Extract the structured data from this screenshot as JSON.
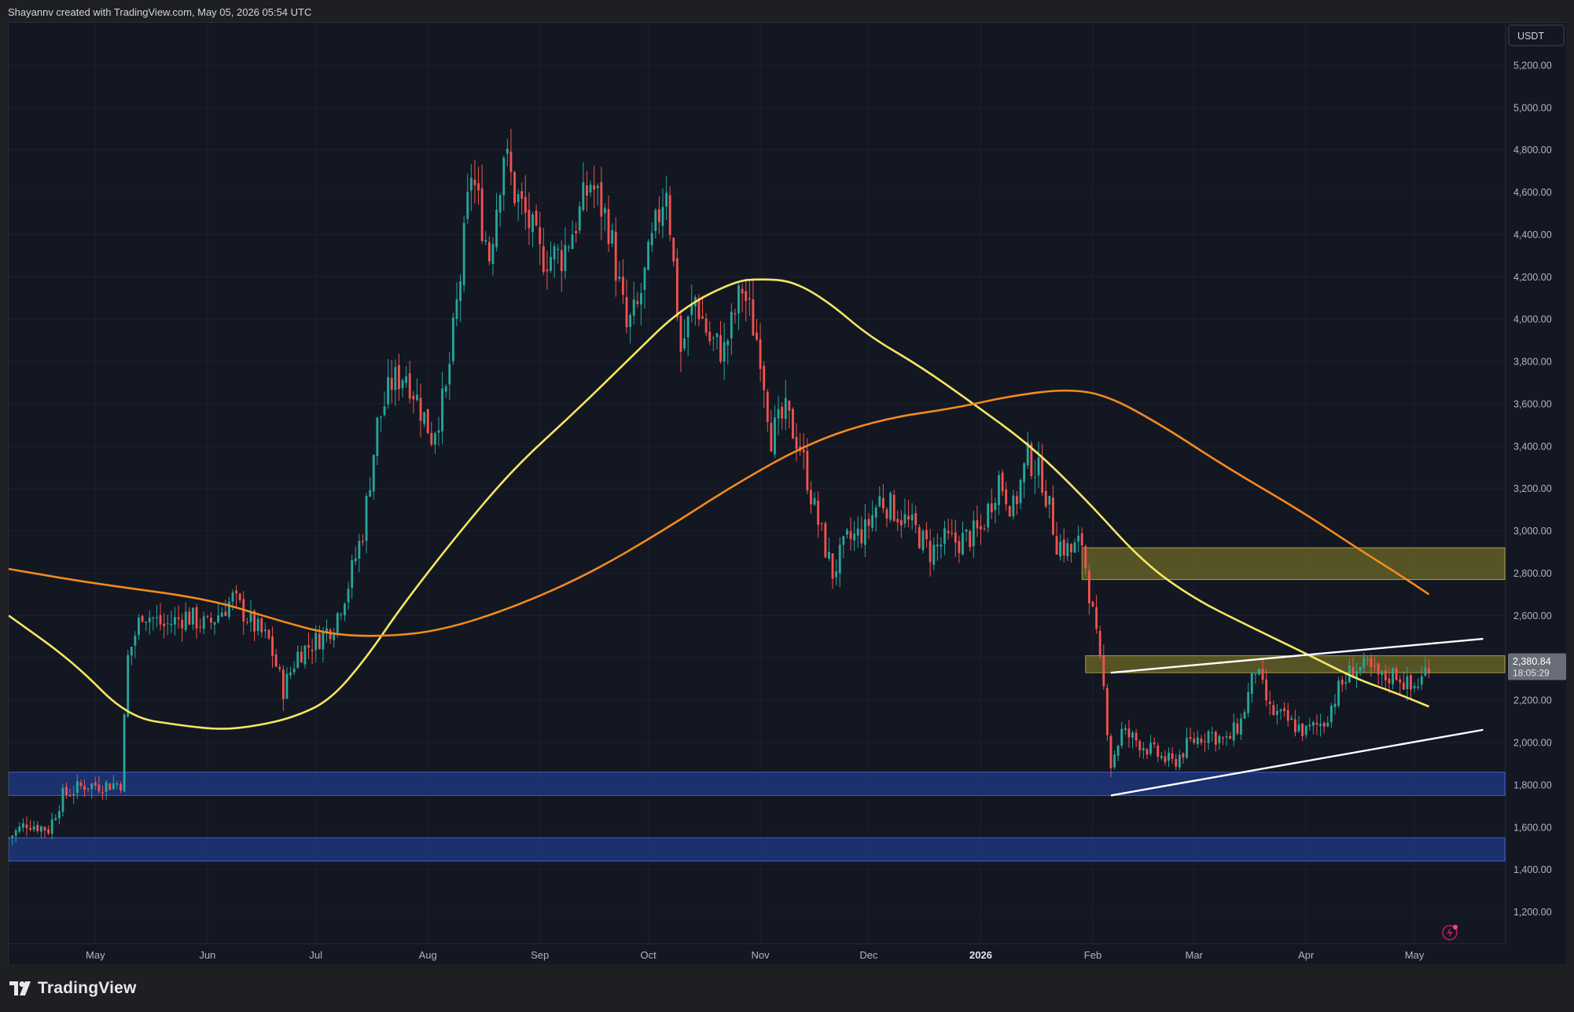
{
  "header": {
    "attribution": "Shayannv created with TradingView.com, May 05, 2026 05:54 UTC"
  },
  "footer": {
    "logo_text": "TradingView"
  },
  "price_axis": {
    "currency": "USDT",
    "current_price": "2,380.84",
    "countdown": "18:05:29"
  },
  "colors": {
    "background": "#131722",
    "up_candle": "#26a69a",
    "down_candle": "#ef5350",
    "ma_fast": "#f5e663",
    "ma_slow": "#f28a1e",
    "resistance_zone": "#6e6a26",
    "support_zone": "#1e3a8a",
    "trendline": "#ffffff",
    "grid": "#1c2030"
  },
  "chart_data": {
    "type": "candlestick",
    "ylim": [
      1050,
      5400
    ],
    "x_range": [
      "2025-04-07",
      "2026-05-26"
    ],
    "yticks": [
      {
        "value": 1200,
        "label": "1,200.00"
      },
      {
        "value": 1400,
        "label": "1,400.00"
      },
      {
        "value": 1600,
        "label": "1,600.00"
      },
      {
        "value": 1800,
        "label": "1,800.00"
      },
      {
        "value": 2000,
        "label": "2,000.00"
      },
      {
        "value": 2200,
        "label": "2,200.00"
      },
      {
        "value": 2400,
        "label": "2,400.00"
      },
      {
        "value": 2600,
        "label": "2,600.00"
      },
      {
        "value": 2800,
        "label": "2,800.00"
      },
      {
        "value": 3000,
        "label": "3,000.00"
      },
      {
        "value": 3200,
        "label": "3,200.00"
      },
      {
        "value": 3400,
        "label": "3,400.00"
      },
      {
        "value": 3600,
        "label": "3,600.00"
      },
      {
        "value": 3800,
        "label": "3,800.00"
      },
      {
        "value": 4000,
        "label": "4,000.00"
      },
      {
        "value": 4200,
        "label": "4,200.00"
      },
      {
        "value": 4400,
        "label": "4,400.00"
      },
      {
        "value": 4600,
        "label": "4,600.00"
      },
      {
        "value": 4800,
        "label": "4,800.00"
      },
      {
        "value": 5000,
        "label": "5,000.00"
      },
      {
        "value": 5200,
        "label": "5,200.00"
      }
    ],
    "xticks": [
      {
        "date": "2025-05-01",
        "label": "May",
        "bold": false
      },
      {
        "date": "2025-06-01",
        "label": "Jun",
        "bold": false
      },
      {
        "date": "2025-07-01",
        "label": "Jul",
        "bold": false
      },
      {
        "date": "2025-08-01",
        "label": "Aug",
        "bold": false
      },
      {
        "date": "2025-09-01",
        "label": "Sep",
        "bold": false
      },
      {
        "date": "2025-10-01",
        "label": "Oct",
        "bold": false
      },
      {
        "date": "2025-11-01",
        "label": "Nov",
        "bold": false
      },
      {
        "date": "2025-12-01",
        "label": "Dec",
        "bold": false
      },
      {
        "date": "2026-01-01",
        "label": "2026",
        "bold": true
      },
      {
        "date": "2026-02-01",
        "label": "Feb",
        "bold": false
      },
      {
        "date": "2026-03-01",
        "label": "Mar",
        "bold": false
      },
      {
        "date": "2026-04-01",
        "label": "Apr",
        "bold": false
      },
      {
        "date": "2026-05-01",
        "label": "May",
        "bold": false
      }
    ],
    "price_path": [
      [
        "2025-04-07",
        1550
      ],
      [
        "2025-04-12",
        1620
      ],
      [
        "2025-04-18",
        1590
      ],
      [
        "2025-04-22",
        1750
      ],
      [
        "2025-04-28",
        1800
      ],
      [
        "2025-05-04",
        1800
      ],
      [
        "2025-05-08",
        1810
      ],
      [
        "2025-05-10",
        2400
      ],
      [
        "2025-05-14",
        2620
      ],
      [
        "2025-05-20",
        2550
      ],
      [
        "2025-05-26",
        2600
      ],
      [
        "2025-06-01",
        2550
      ],
      [
        "2025-06-08",
        2680
      ],
      [
        "2025-06-14",
        2550
      ],
      [
        "2025-06-18",
        2480
      ],
      [
        "2025-06-22",
        2250
      ],
      [
        "2025-06-26",
        2420
      ],
      [
        "2025-07-01",
        2480
      ],
      [
        "2025-07-06",
        2560
      ],
      [
        "2025-07-10",
        2750
      ],
      [
        "2025-07-14",
        3000
      ],
      [
        "2025-07-18",
        3500
      ],
      [
        "2025-07-22",
        3700
      ],
      [
        "2025-07-26",
        3750
      ],
      [
        "2025-08-02",
        3450
      ],
      [
        "2025-08-06",
        3650
      ],
      [
        "2025-08-10",
        4200
      ],
      [
        "2025-08-13",
        4700
      ],
      [
        "2025-08-18",
        4300
      ],
      [
        "2025-08-22",
        4800
      ],
      [
        "2025-08-25",
        4600
      ],
      [
        "2025-08-29",
        4450
      ],
      [
        "2025-09-01",
        4300
      ],
      [
        "2025-09-07",
        4300
      ],
      [
        "2025-09-12",
        4500
      ],
      [
        "2025-09-15",
        4650
      ],
      [
        "2025-09-20",
        4450
      ],
      [
        "2025-09-25",
        3950
      ],
      [
        "2025-09-28",
        4050
      ],
      [
        "2025-10-02",
        4350
      ],
      [
        "2025-10-06",
        4650
      ],
      [
        "2025-10-10",
        3850
      ],
      [
        "2025-10-14",
        4100
      ],
      [
        "2025-10-18",
        3900
      ],
      [
        "2025-10-22",
        3850
      ],
      [
        "2025-10-27",
        4150
      ],
      [
        "2025-11-01",
        3850
      ],
      [
        "2025-11-04",
        3450
      ],
      [
        "2025-11-08",
        3550
      ],
      [
        "2025-11-12",
        3400
      ],
      [
        "2025-11-16",
        3100
      ],
      [
        "2025-11-21",
        2800
      ],
      [
        "2025-11-25",
        2950
      ],
      [
        "2025-11-30",
        3000
      ],
      [
        "2025-12-04",
        3150
      ],
      [
        "2025-12-08",
        3100
      ],
      [
        "2025-12-14",
        3000
      ],
      [
        "2025-12-18",
        2900
      ],
      [
        "2025-12-22",
        2950
      ],
      [
        "2025-12-26",
        2950
      ],
      [
        "2026-01-01",
        3000
      ],
      [
        "2026-01-06",
        3250
      ],
      [
        "2026-01-10",
        3100
      ],
      [
        "2026-01-14",
        3350
      ],
      [
        "2026-01-18",
        3250
      ],
      [
        "2026-01-22",
        2950
      ],
      [
        "2026-01-26",
        2900
      ],
      [
        "2026-01-29",
        2950
      ],
      [
        "2026-02-01",
        2600
      ],
      [
        "2026-02-04",
        2250
      ],
      [
        "2026-02-06",
        1900
      ],
      [
        "2026-02-09",
        2050
      ],
      [
        "2026-02-14",
        2000
      ],
      [
        "2026-02-18",
        1950
      ],
      [
        "2026-02-23",
        1900
      ],
      [
        "2026-02-28",
        2000
      ],
      [
        "2026-03-05",
        2050
      ],
      [
        "2026-03-10",
        2000
      ],
      [
        "2026-03-14",
        2100
      ],
      [
        "2026-03-18",
        2350
      ],
      [
        "2026-03-22",
        2150
      ],
      [
        "2026-03-27",
        2100
      ],
      [
        "2026-04-01",
        2050
      ],
      [
        "2026-04-06",
        2100
      ],
      [
        "2026-04-10",
        2250
      ],
      [
        "2026-04-14",
        2350
      ],
      [
        "2026-04-18",
        2350
      ],
      [
        "2026-04-22",
        2300
      ],
      [
        "2026-04-26",
        2330
      ],
      [
        "2026-04-30",
        2250
      ],
      [
        "2026-05-03",
        2300
      ],
      [
        "2026-05-05",
        2380
      ]
    ],
    "moving_averages": [
      {
        "color": "#f5e663",
        "points": [
          [
            "2025-04-07",
            2600
          ],
          [
            "2025-04-25",
            2380
          ],
          [
            "2025-05-10",
            2120
          ],
          [
            "2025-05-25",
            2080
          ],
          [
            "2025-06-05",
            2060
          ],
          [
            "2025-06-15",
            2080
          ],
          [
            "2025-06-25",
            2120
          ],
          [
            "2025-07-05",
            2200
          ],
          [
            "2025-07-15",
            2400
          ],
          [
            "2025-07-25",
            2650
          ],
          [
            "2025-08-10",
            3000
          ],
          [
            "2025-08-25",
            3300
          ],
          [
            "2025-09-10",
            3550
          ],
          [
            "2025-09-25",
            3800
          ],
          [
            "2025-10-10",
            4050
          ],
          [
            "2025-10-25",
            4180
          ],
          [
            "2025-11-01",
            4190
          ],
          [
            "2025-11-10",
            4180
          ],
          [
            "2025-11-20",
            4080
          ],
          [
            "2025-12-01",
            3920
          ],
          [
            "2025-12-15",
            3780
          ],
          [
            "2025-12-30",
            3600
          ],
          [
            "2026-01-15",
            3400
          ],
          [
            "2026-01-30",
            3150
          ],
          [
            "2026-02-15",
            2850
          ],
          [
            "2026-03-01",
            2680
          ],
          [
            "2026-03-15",
            2560
          ],
          [
            "2026-04-01",
            2420
          ],
          [
            "2026-04-15",
            2300
          ],
          [
            "2026-04-25",
            2240
          ],
          [
            "2026-05-05",
            2170
          ]
        ]
      },
      {
        "color": "#f28a1e",
        "points": [
          [
            "2025-04-07",
            2820
          ],
          [
            "2025-05-01",
            2750
          ],
          [
            "2025-06-01",
            2680
          ],
          [
            "2025-06-20",
            2580
          ],
          [
            "2025-07-05",
            2510
          ],
          [
            "2025-07-20",
            2500
          ],
          [
            "2025-08-05",
            2530
          ],
          [
            "2025-08-25",
            2640
          ],
          [
            "2025-09-15",
            2800
          ],
          [
            "2025-10-05",
            3000
          ],
          [
            "2025-10-25",
            3220
          ],
          [
            "2025-11-15",
            3420
          ],
          [
            "2025-12-05",
            3530
          ],
          [
            "2025-12-25",
            3580
          ],
          [
            "2026-01-10",
            3640
          ],
          [
            "2026-01-25",
            3670
          ],
          [
            "2026-02-05",
            3640
          ],
          [
            "2026-02-20",
            3500
          ],
          [
            "2026-03-10",
            3300
          ],
          [
            "2026-03-30",
            3100
          ],
          [
            "2026-04-15",
            2920
          ],
          [
            "2026-04-28",
            2780
          ],
          [
            "2026-05-05",
            2700
          ]
        ]
      }
    ],
    "zones": [
      {
        "kind": "resistance",
        "from": "2026-01-29",
        "price_low": 2770,
        "price_high": 2920
      },
      {
        "kind": "resistance",
        "from": "2026-01-30",
        "price_low": 2330,
        "price_high": 2410
      },
      {
        "kind": "support",
        "from": "2025-04-07",
        "price_low": 1750,
        "price_high": 1860
      },
      {
        "kind": "support",
        "from": "2025-04-07",
        "price_low": 1440,
        "price_high": 1550
      }
    ],
    "trendlines": [
      {
        "start": [
          "2026-02-06",
          2330
        ],
        "end": [
          "2026-05-20",
          2490
        ]
      },
      {
        "start": [
          "2026-02-06",
          1750
        ],
        "end": [
          "2026-05-20",
          2060
        ]
      }
    ]
  }
}
